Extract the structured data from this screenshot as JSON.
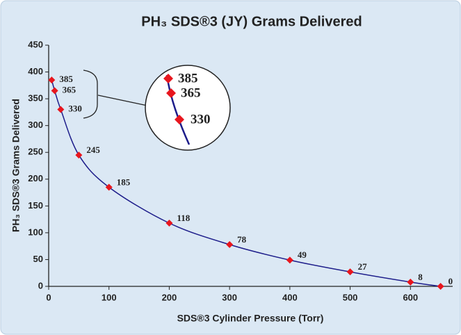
{
  "chart_data": {
    "type": "line",
    "title": "PH₃ SDS®3 (JY) Grams Delivered",
    "x_label": "SDS®3 Cylinder Pressure (Torr)",
    "y_label": "PH₃ SDS®3 Grams Delivered",
    "x": [
      5,
      10,
      20,
      50,
      100,
      200,
      300,
      400,
      500,
      600,
      650
    ],
    "series": [
      {
        "name": null,
        "color": "#1c1c8a",
        "marker_color": "#e8161e",
        "values": [
          385,
          365,
          330,
          245,
          185,
          118,
          78,
          49,
          27,
          8,
          0
        ]
      }
    ],
    "xlim": [
      0,
      670
    ],
    "xticks": [
      0,
      100,
      200,
      300,
      400,
      500,
      600
    ],
    "ylim": [
      0,
      450
    ],
    "yticks": [
      0,
      50,
      100,
      150,
      200,
      250,
      300,
      350,
      400,
      450
    ],
    "grid": false
  }
}
